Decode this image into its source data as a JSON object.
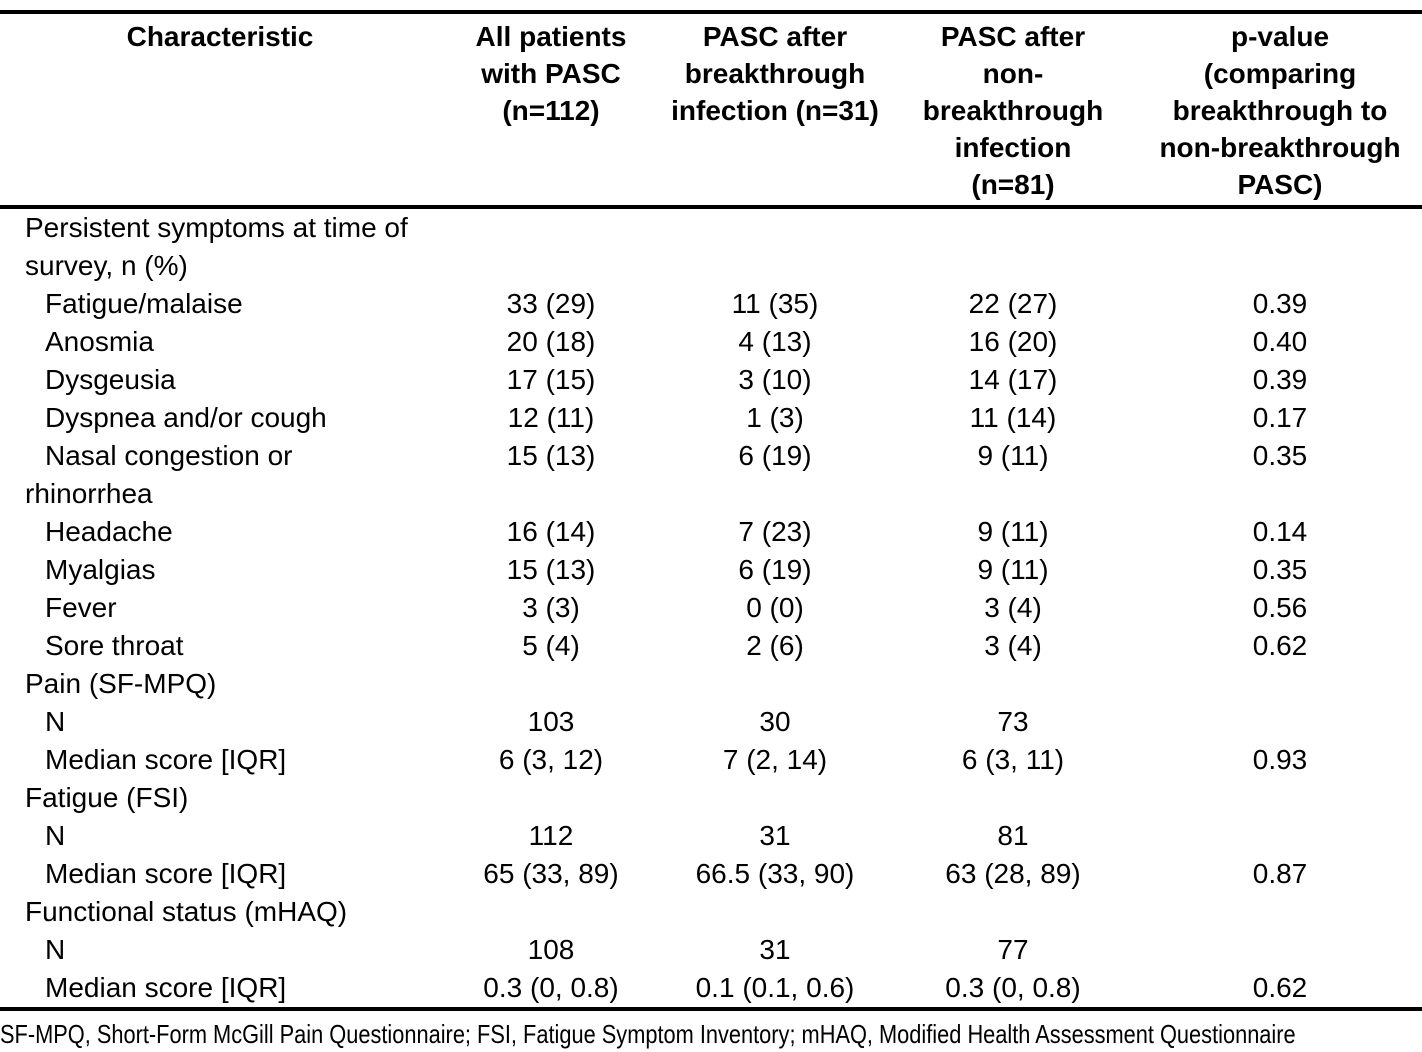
{
  "table": {
    "columns": [
      {
        "label": "Characteristic"
      },
      {
        "label": "All patients\nwith PASC\n(n=112)"
      },
      {
        "label": "PASC after\nbreakthrough\ninfection (n=31)"
      },
      {
        "label": "PASC after\nnon-\nbreakthrough\ninfection\n(n=81)"
      },
      {
        "label": "p-value\n(comparing\nbreakthrough to\nnon-breakthrough\nPASC)"
      }
    ],
    "rows": [
      {
        "label": "Persistent symptoms at time of\nsurvey, n (%)",
        "indent": false,
        "values": [
          "",
          "",
          "",
          ""
        ]
      },
      {
        "label": "Fatigue/malaise",
        "indent": true,
        "values": [
          "33 (29)",
          "11 (35)",
          "22 (27)",
          "0.39"
        ]
      },
      {
        "label": "Anosmia",
        "indent": true,
        "values": [
          "20 (18)",
          "4 (13)",
          "16 (20)",
          "0.40"
        ]
      },
      {
        "label": "Dysgeusia",
        "indent": true,
        "values": [
          "17 (15)",
          "3 (10)",
          "14 (17)",
          "0.39"
        ]
      },
      {
        "label": "Dyspnea and/or cough",
        "indent": true,
        "values": [
          "12 (11)",
          "1 (3)",
          "11 (14)",
          "0.17"
        ]
      },
      {
        "label": "Nasal congestion or\nrhinorrhea",
        "indent": true,
        "values": [
          "15 (13)",
          "6 (19)",
          "9 (11)",
          "0.35"
        ]
      },
      {
        "label": "Headache",
        "indent": true,
        "values": [
          "16 (14)",
          "7 (23)",
          "9 (11)",
          "0.14"
        ]
      },
      {
        "label": "Myalgias",
        "indent": true,
        "values": [
          "15 (13)",
          "6 (19)",
          "9 (11)",
          "0.35"
        ]
      },
      {
        "label": "Fever",
        "indent": true,
        "values": [
          "3 (3)",
          "0 (0)",
          "3 (4)",
          "0.56"
        ]
      },
      {
        "label": "Sore throat",
        "indent": true,
        "values": [
          "5 (4)",
          "2 (6)",
          "3 (4)",
          "0.62"
        ]
      },
      {
        "label": "Pain (SF-MPQ)",
        "indent": false,
        "values": [
          "",
          "",
          "",
          ""
        ]
      },
      {
        "label": "N",
        "indent": true,
        "values": [
          "103",
          "30",
          "73",
          ""
        ]
      },
      {
        "label": "Median score [IQR]",
        "indent": true,
        "values": [
          "6 (3, 12)",
          "7 (2, 14)",
          "6 (3, 11)",
          "0.93"
        ]
      },
      {
        "label": "Fatigue (FSI)",
        "indent": false,
        "values": [
          "",
          "",
          "",
          ""
        ]
      },
      {
        "label": "N",
        "indent": true,
        "values": [
          "112",
          "31",
          "81",
          ""
        ]
      },
      {
        "label": "Median score [IQR]",
        "indent": true,
        "values": [
          "65 (33, 89)",
          "66.5 (33, 90)",
          "63 (28, 89)",
          "0.87"
        ]
      },
      {
        "label": "Functional status (mHAQ)",
        "indent": false,
        "values": [
          "",
          "",
          "",
          ""
        ]
      },
      {
        "label": "N",
        "indent": true,
        "values": [
          "108",
          "31",
          "77",
          ""
        ]
      },
      {
        "label": "Median score [IQR]",
        "indent": true,
        "values": [
          "0.3 (0, 0.8)",
          "0.1 (0.1, 0.6)",
          "0.3 (0, 0.8)",
          "0.62"
        ]
      }
    ]
  },
  "footnote": {
    "text": "SF-MPQ, Short-Form McGill Pain Questionnaire; FSI, Fatigue Symptom Inventory; mHAQ, Modified Health Assessment Questionnaire"
  },
  "colors": {
    "text": "#000000",
    "background": "#ffffff",
    "rule": "#000000"
  }
}
